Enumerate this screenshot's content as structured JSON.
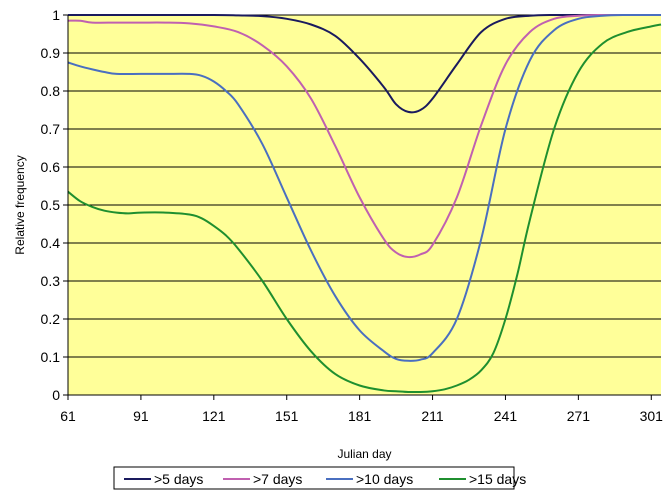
{
  "chart_data": {
    "type": "line",
    "title": "",
    "xlabel": "Julian day",
    "ylabel": "Relative frequency",
    "xlim": [
      61,
      305
    ],
    "ylim": [
      0,
      1
    ],
    "x_ticks": [
      61,
      91,
      121,
      151,
      181,
      211,
      241,
      271,
      301
    ],
    "y_ticks": [
      0,
      0.1,
      0.2,
      0.3,
      0.4,
      0.5,
      0.6,
      0.7,
      0.8,
      0.9,
      1
    ],
    "y_tick_labels": [
      "0",
      "0.1",
      "0.2",
      "0.3",
      "0.4",
      "0.5",
      "0.6",
      "0.7",
      "0.8",
      "0.9",
      "1"
    ],
    "grid": "horizontal",
    "legend_position": "bottom",
    "plot_background": "#ffff99",
    "series": [
      {
        "name": ">5 days",
        "color": "#1a1a5e",
        "x": [
          61,
          91,
          121,
          131,
          141,
          151,
          161,
          171,
          181,
          191,
          196,
          201,
          206,
          211,
          221,
          231,
          241,
          251,
          261,
          271,
          281,
          291,
          301,
          305
        ],
        "y": [
          1.0,
          1.0,
          1.0,
          0.999,
          0.997,
          0.99,
          0.975,
          0.945,
          0.885,
          0.81,
          0.765,
          0.745,
          0.75,
          0.78,
          0.87,
          0.955,
          0.99,
          0.998,
          1.0,
          1.0,
          1.0,
          1.0,
          1.0,
          1.0
        ]
      },
      {
        "name": ">7 days",
        "color": "#c060b0",
        "x": [
          61,
          66,
          71,
          81,
          91,
          101,
          111,
          121,
          131,
          141,
          151,
          161,
          171,
          181,
          191,
          196,
          201,
          206,
          211,
          221,
          231,
          241,
          251,
          261,
          271,
          281,
          291,
          301,
          305
        ],
        "y": [
          0.985,
          0.985,
          0.98,
          0.98,
          0.98,
          0.98,
          0.978,
          0.97,
          0.955,
          0.92,
          0.865,
          0.78,
          0.655,
          0.52,
          0.41,
          0.375,
          0.363,
          0.37,
          0.395,
          0.52,
          0.71,
          0.87,
          0.955,
          0.99,
          0.998,
          1.0,
          1.0,
          1.0,
          1.0
        ]
      },
      {
        "name": ">10 days",
        "color": "#4a6fc0",
        "x": [
          61,
          66,
          71,
          76,
          81,
          91,
          101,
          111,
          116,
          121,
          126,
          131,
          141,
          151,
          161,
          171,
          181,
          191,
          196,
          201,
          206,
          211,
          221,
          231,
          241,
          251,
          261,
          271,
          281,
          291,
          301,
          305
        ],
        "y": [
          0.875,
          0.865,
          0.857,
          0.85,
          0.845,
          0.845,
          0.845,
          0.845,
          0.84,
          0.825,
          0.8,
          0.765,
          0.66,
          0.52,
          0.38,
          0.26,
          0.17,
          0.115,
          0.095,
          0.09,
          0.093,
          0.11,
          0.2,
          0.41,
          0.7,
          0.88,
          0.96,
          0.99,
          0.998,
          1.0,
          1.0,
          1.0
        ]
      },
      {
        "name": ">15 days",
        "color": "#1f8f2f",
        "x": [
          61,
          66,
          71,
          76,
          81,
          86,
          91,
          101,
          111,
          116,
          121,
          126,
          131,
          141,
          151,
          161,
          171,
          181,
          191,
          196,
          201,
          206,
          211,
          216,
          221,
          226,
          231,
          236,
          241,
          246,
          251,
          261,
          271,
          281,
          291,
          301,
          305
        ],
        "y": [
          0.535,
          0.51,
          0.495,
          0.485,
          0.48,
          0.478,
          0.48,
          0.48,
          0.475,
          0.465,
          0.445,
          0.42,
          0.385,
          0.3,
          0.2,
          0.115,
          0.055,
          0.025,
          0.012,
          0.01,
          0.008,
          0.008,
          0.01,
          0.015,
          0.025,
          0.04,
          0.065,
          0.11,
          0.2,
          0.32,
          0.46,
          0.7,
          0.85,
          0.925,
          0.955,
          0.97,
          0.975
        ]
      }
    ]
  }
}
